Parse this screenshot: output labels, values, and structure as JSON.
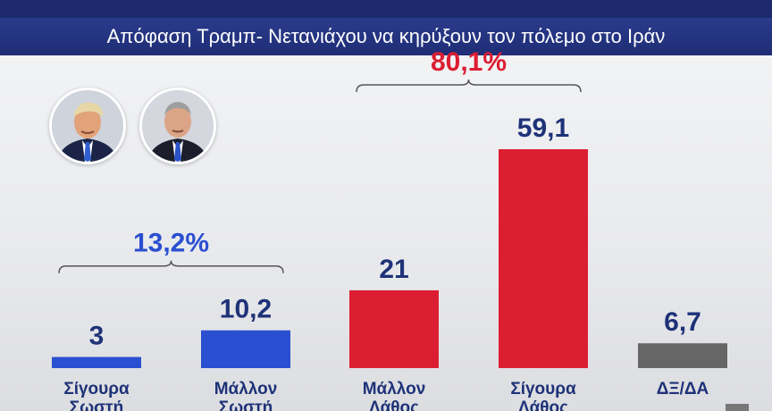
{
  "header": {
    "title": "Απόφαση Τραμπ- Νετανιάχου  να κηρύξουν τον πόλεμο στο Ιράν"
  },
  "colors": {
    "blue": "#2a4fd0",
    "red": "#dc1e32",
    "gray": "#666666",
    "value_text": "#1e3278",
    "blue_pct_text": "#2a4fd0",
    "red_pct_text": "#dc1e32"
  },
  "icons": [
    "trump-portrait-icon",
    "netanyahu-portrait-icon"
  ],
  "chart_data": {
    "type": "bar",
    "title": "Απόφαση Τραμπ- Νετανιάχου  να κηρύξουν τον πόλεμο στο Ιράν",
    "categories": [
      [
        "Σίγουρα",
        "Σωστή"
      ],
      [
        "Μάλλον",
        "Σωστή"
      ],
      [
        "Μάλλον",
        "Λάθος"
      ],
      [
        "Σίγουρα",
        "Λάθος"
      ],
      [
        "ΔΞ/ΔΑ"
      ]
    ],
    "values": [
      3,
      10.2,
      21,
      59.1,
      6.7
    ],
    "value_labels": [
      "3",
      "10,2",
      "21",
      "59,1",
      "6,7"
    ],
    "bar_colors": [
      "#2a4fd0",
      "#2a4fd0",
      "#dc1e32",
      "#dc1e32",
      "#666666"
    ],
    "groups": [
      {
        "label": "13,2%",
        "from": 0,
        "to": 1,
        "color": "#2a4fd0"
      },
      {
        "label": "80,1%",
        "from": 2,
        "to": 3,
        "color": "#dc1e32"
      }
    ],
    "ylim": [
      0,
      59.1
    ],
    "grid": false,
    "xlabel": "",
    "ylabel": ""
  }
}
